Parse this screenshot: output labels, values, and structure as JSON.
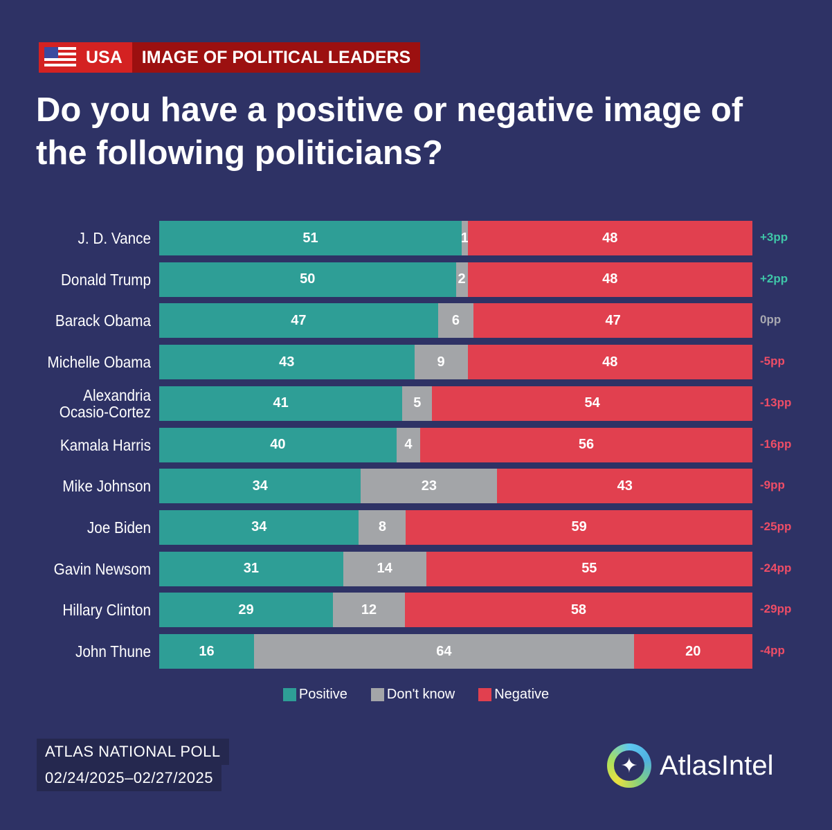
{
  "header": {
    "country": "USA",
    "topic": "IMAGE OF POLITICAL LEADERS",
    "title": "Do you have a positive or negative image of the following politicians?"
  },
  "colors": {
    "background": "#2e3265",
    "positive": "#2e9e96",
    "dont_know": "#a3a5a8",
    "negative": "#e1404f",
    "diff_pos": "#3fc6a8",
    "diff_zero": "#a8a8b0",
    "diff_neg": "#ee4d66"
  },
  "chart_data": {
    "type": "bar",
    "stacked": true,
    "orientation": "horizontal",
    "title": "Do you have a positive or negative image of the following politicians?",
    "categories": [
      "J. D. Vance",
      "Donald Trump",
      "Barack Obama",
      "Michelle Obama",
      "Alexandria Ocasio-Cortez",
      "Kamala Harris",
      "Mike Johnson",
      "Joe Biden",
      "Gavin Newsom",
      "Hillary Clinton",
      "John Thune"
    ],
    "series": [
      {
        "name": "Positive",
        "values": [
          51,
          50,
          47,
          43,
          41,
          40,
          34,
          34,
          31,
          29,
          16
        ]
      },
      {
        "name": "Don't know",
        "values": [
          1,
          2,
          6,
          9,
          5,
          4,
          23,
          8,
          14,
          12,
          64
        ]
      },
      {
        "name": "Negative",
        "values": [
          48,
          48,
          47,
          48,
          54,
          56,
          43,
          59,
          55,
          58,
          20
        ]
      }
    ],
    "net": [
      "+3pp",
      "+2pp",
      "0pp",
      "-5pp",
      "-13pp",
      "-16pp",
      "-9pp",
      "-25pp",
      "-24pp",
      "-29pp",
      "-4pp"
    ],
    "legend": "bottom-center"
  },
  "footer": {
    "poll": "ATLAS NATIONAL POLL",
    "dates": "02/24/2025–02/27/2025",
    "brand": "AtlasIntel"
  }
}
